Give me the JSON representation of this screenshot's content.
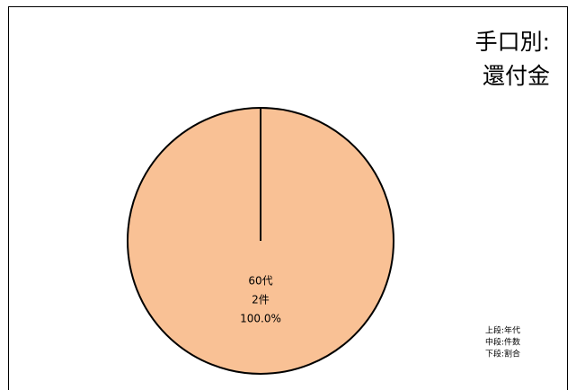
{
  "chart_data": {
    "type": "pie",
    "title": [
      "手口別:",
      "還付金"
    ],
    "categories": [
      "60代"
    ],
    "values": [
      2
    ],
    "value_labels": [
      "2件"
    ],
    "percents": [
      100
    ],
    "percent_labels": [
      "100.0%"
    ],
    "colors": [
      "#f9c195"
    ],
    "notes": [
      "上段:年代",
      "中段:件数",
      "下段:割合"
    ]
  }
}
